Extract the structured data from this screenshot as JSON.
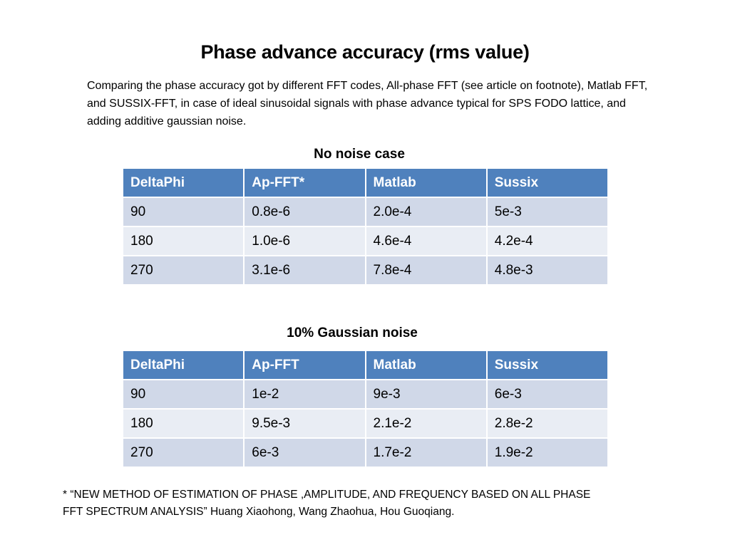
{
  "title": "Phase advance accuracy (rms value)",
  "intro": "Comparing the phase accuracy got by different FFT codes, All-phase FFT (see article on footnote), Matlab FFT, and SUSSIX-FFT, in case of ideal sinusoidal signals with phase advance typical for SPS FODO lattice, and adding additive gaussian noise.",
  "table1": {
    "caption": "No noise case",
    "headers": [
      "DeltaPhi",
      "Ap-FFT*",
      "Matlab",
      "Sussix"
    ],
    "rows": [
      [
        "90",
        "0.8e-6",
        "2.0e-4",
        "5e-3"
      ],
      [
        "180",
        "1.0e-6",
        "4.6e-4",
        "4.2e-4"
      ],
      [
        "270",
        "3.1e-6",
        "7.8e-4",
        "4.8e-3"
      ]
    ]
  },
  "table2": {
    "caption": "10% Gaussian noise",
    "headers": [
      "DeltaPhi",
      "Ap-FFT",
      "Matlab",
      "Sussix"
    ],
    "rows": [
      [
        "90",
        "1e-2",
        "9e-3",
        "6e-3"
      ],
      [
        "180",
        "9.5e-3",
        "2.1e-2",
        "2.8e-2"
      ],
      [
        "270",
        "6e-3",
        "1.7e-2",
        "1.9e-2"
      ]
    ]
  },
  "footnote": {
    "line1": "* “NEW METHOD OF ESTIMATION OF PHASE ,AMPLITUDE, AND FREQUENCY BASED ON ALL PHASE",
    "line2": "FFT SPECTRUM ANALYSIS” Huang Xiaohong, Wang Zhaohua, Hou Guoqiang."
  },
  "colors": {
    "header_bg": "#4f81bd",
    "row_odd_bg": "#d0d8e8",
    "row_even_bg": "#e9edf4"
  }
}
